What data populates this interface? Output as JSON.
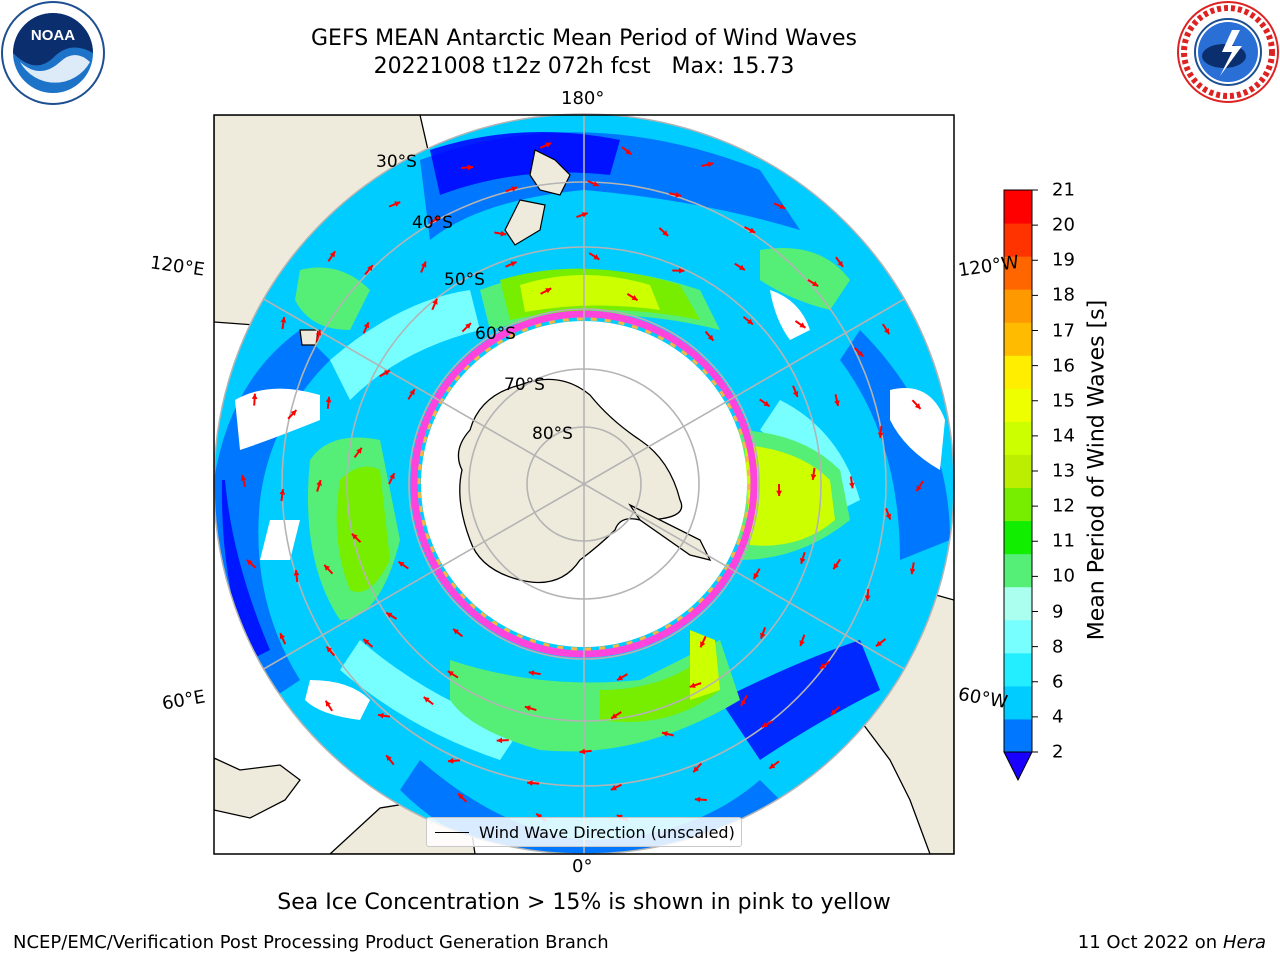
{
  "title": {
    "line1": "GEFS MEAN Antarctic Mean Period of Wind Waves",
    "line2": "20221008 t12z 072h fcst   Max: 15.73"
  },
  "logos": {
    "left": "noaa-logo",
    "left_text": "NOAA",
    "right": "nws-logo"
  },
  "map": {
    "projection": "south-polar-stereographic",
    "longitude_labels": {
      "top": "180°",
      "bottom": "0°",
      "upper_left": "120°E",
      "lower_left": "60°E",
      "upper_right": "120°W",
      "lower_right": "60°W"
    },
    "latitude_labels": [
      "30°S",
      "40°S",
      "50°S",
      "60°S",
      "70°S",
      "80°S"
    ],
    "legend": "Wind Wave Direction (unscaled)",
    "colors": {
      "land": "#efebdc",
      "ocean_none": "#ffffff",
      "arrows": "#ff0000",
      "sea_ice_low": "#ff44dd",
      "sea_ice_high": "#f5b942",
      "grid": "#b4b4b4"
    }
  },
  "colorbar": {
    "title": "Mean Period of Wind Waves [s]",
    "ticks": [
      "21",
      "20",
      "19",
      "18",
      "17",
      "16",
      "15",
      "14",
      "13",
      "12",
      "11",
      "10",
      "9",
      "8",
      "6",
      "4",
      "2"
    ],
    "colors_bottom_to_top": [
      "#0077ff",
      "#00ccff",
      "#22eeff",
      "#77ffff",
      "#aaffee",
      "#55ee77",
      "#11ee00",
      "#77ee00",
      "#bbee00",
      "#ccff00",
      "#eeff00",
      "#ffee00",
      "#ffbb00",
      "#ff9900",
      "#ff6600",
      "#ff3300",
      "#ff0000"
    ],
    "under_color": "#1a00ff"
  },
  "caption": "Sea Ice Concentration > 15% is shown in pink to yellow",
  "footer": {
    "left": "NCEP/EMC/Verification Post Processing Product Generation Branch",
    "right_prefix": "11 Oct 2022 on ",
    "right_italic": "Hera"
  }
}
